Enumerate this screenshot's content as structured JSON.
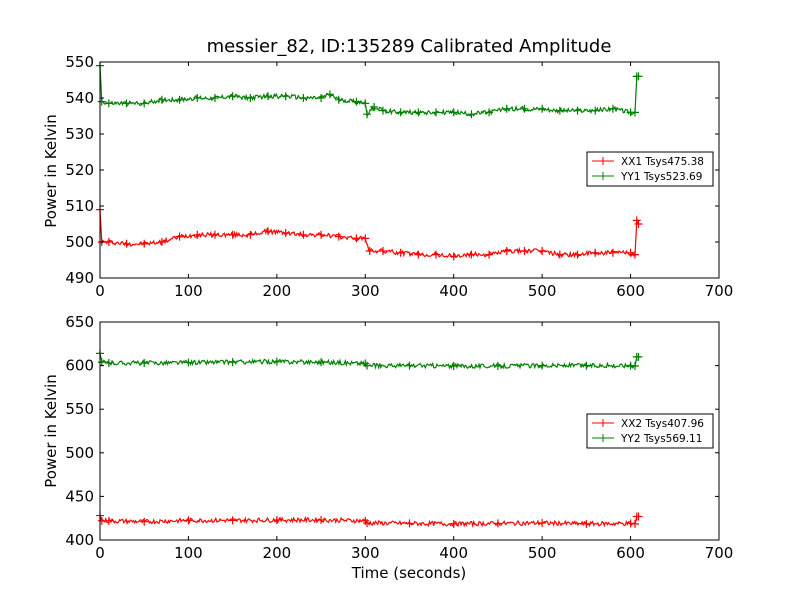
{
  "chart_data": [
    {
      "type": "line",
      "title": "messier_82, ID:135289 Calibrated Amplitude",
      "xlabel": "",
      "ylabel": "Power in Kelvin",
      "xlim": [
        0,
        700
      ],
      "ylim": [
        490,
        550
      ],
      "x_ticks": [
        "0",
        "100",
        "200",
        "300",
        "400",
        "500",
        "600",
        "700"
      ],
      "y_ticks": [
        "490",
        "500",
        "510",
        "520",
        "530",
        "540",
        "550"
      ],
      "legend_position": "right",
      "series": [
        {
          "name": "XX1 Tsys475.38",
          "color": "#ff0000",
          "marker": "+",
          "x": [
            0,
            2,
            10,
            30,
            50,
            70,
            90,
            110,
            130,
            150,
            170,
            190,
            210,
            230,
            250,
            270,
            290,
            300,
            305,
            320,
            340,
            360,
            380,
            400,
            420,
            440,
            460,
            480,
            500,
            520,
            540,
            560,
            580,
            600,
            605,
            607,
            609
          ],
          "y": [
            509,
            500,
            500,
            499.5,
            499.5,
            500,
            501.5,
            502,
            502,
            502,
            502,
            503,
            502.5,
            502,
            502,
            501.5,
            501,
            501,
            497.5,
            497.5,
            497,
            496.5,
            496.5,
            496,
            496.5,
            496.5,
            497.5,
            497.5,
            497.5,
            496.5,
            496.5,
            497,
            497,
            497,
            496.5,
            506,
            505
          ]
        },
        {
          "name": "YY1 Tsys523.69",
          "color": "#008000",
          "marker": "+",
          "x": [
            0,
            2,
            10,
            30,
            50,
            70,
            90,
            110,
            130,
            150,
            170,
            190,
            210,
            230,
            250,
            260,
            270,
            290,
            300,
            302,
            310,
            320,
            340,
            360,
            380,
            400,
            420,
            440,
            460,
            480,
            500,
            520,
            540,
            560,
            580,
            600,
            605,
            607,
            609
          ],
          "y": [
            549,
            539,
            538.5,
            538.5,
            538.5,
            539.5,
            539.5,
            540,
            540,
            540.5,
            540,
            540.5,
            540.5,
            540,
            540,
            541,
            539.5,
            539,
            538.5,
            535.5,
            537.5,
            536.5,
            536,
            536,
            536,
            536,
            535.5,
            536,
            537,
            537,
            537,
            536.5,
            536.5,
            536.5,
            537,
            536,
            536,
            546,
            546
          ]
        }
      ]
    },
    {
      "type": "line",
      "title": "",
      "xlabel": "Time (seconds)",
      "ylabel": "Power in Kelvin",
      "xlim": [
        0,
        700
      ],
      "ylim": [
        400,
        650
      ],
      "x_ticks": [
        "0",
        "100",
        "200",
        "300",
        "400",
        "500",
        "600",
        "700"
      ],
      "y_ticks": [
        "400",
        "450",
        "500",
        "550",
        "600",
        "650"
      ],
      "legend_position": "right",
      "series": [
        {
          "name": "XX2 Tsys407.96",
          "color": "#ff0000",
          "marker": "+",
          "x": [
            0,
            2,
            10,
            50,
            100,
            150,
            200,
            250,
            300,
            302,
            350,
            400,
            450,
            500,
            550,
            600,
            605,
            607,
            609
          ],
          "y": [
            428,
            422,
            422,
            421,
            422.5,
            422.5,
            423,
            423,
            422,
            419.5,
            419,
            418.5,
            419,
            419.5,
            418.5,
            419,
            418.5,
            427,
            427
          ]
        },
        {
          "name": "YY2 Tsys569.11",
          "color": "#008000",
          "marker": "+",
          "x": [
            0,
            2,
            10,
            50,
            100,
            150,
            200,
            250,
            300,
            302,
            350,
            400,
            450,
            500,
            550,
            600,
            605,
            607,
            609
          ],
          "y": [
            614,
            604,
            603,
            603,
            603.5,
            604,
            604.5,
            604,
            602.5,
            600,
            600,
            599.5,
            599.5,
            600,
            600,
            600,
            599.5,
            610,
            610
          ]
        }
      ]
    }
  ]
}
